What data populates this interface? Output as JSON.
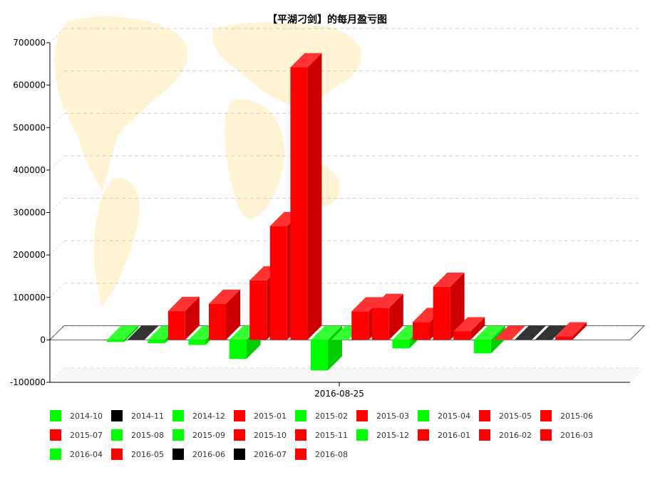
{
  "chart_data": {
    "type": "bar",
    "title": "【平湖刁剑】的每月盈亏图",
    "xlabel": "",
    "ylabel": "",
    "x_category_label": "2016-08-25",
    "ylim": [
      -100000,
      700000
    ],
    "yticks": [
      -100000,
      0,
      100000,
      200000,
      300000,
      400000,
      500000,
      600000,
      700000
    ],
    "grid": true,
    "legend_position": "bottom",
    "colors": {
      "gain": "#ff0000",
      "loss": "#00ff00",
      "zero": "#000000"
    },
    "series": [
      {
        "name": "2014-10",
        "value": -5000,
        "color": "#00ff00"
      },
      {
        "name": "2014-11",
        "value": 0,
        "color": "#000000"
      },
      {
        "name": "2014-12",
        "value": -8000,
        "color": "#00ff00"
      },
      {
        "name": "2015-01",
        "value": 68000,
        "color": "#ff0000"
      },
      {
        "name": "2015-02",
        "value": -12000,
        "color": "#00ff00"
      },
      {
        "name": "2015-03",
        "value": 85000,
        "color": "#ff0000"
      },
      {
        "name": "2015-04",
        "value": -45000,
        "color": "#00ff00"
      },
      {
        "name": "2015-05",
        "value": 140000,
        "color": "#ff0000"
      },
      {
        "name": "2015-06",
        "value": 268000,
        "color": "#ff0000"
      },
      {
        "name": "2015-07",
        "value": 642000,
        "color": "#ff0000"
      },
      {
        "name": "2015-08",
        "value": -72000,
        "color": "#00ff00"
      },
      {
        "name": "2015-09",
        "value": 0,
        "color": "#00ff00"
      },
      {
        "name": "2015-10",
        "value": 67000,
        "color": "#ff0000"
      },
      {
        "name": "2015-11",
        "value": 75000,
        "color": "#ff0000"
      },
      {
        "name": "2015-12",
        "value": -20000,
        "color": "#00ff00"
      },
      {
        "name": "2016-01",
        "value": 42000,
        "color": "#ff0000"
      },
      {
        "name": "2016-02",
        "value": 125000,
        "color": "#ff0000"
      },
      {
        "name": "2016-03",
        "value": 20000,
        "color": "#ff0000"
      },
      {
        "name": "2016-04",
        "value": -32000,
        "color": "#00ff00"
      },
      {
        "name": "2016-05",
        "value": 0,
        "color": "#ff0000"
      },
      {
        "name": "2016-06",
        "value": 0,
        "color": "#000000"
      },
      {
        "name": "2016-07",
        "value": 0,
        "color": "#000000"
      },
      {
        "name": "2016-08",
        "value": 8000,
        "color": "#ff0000"
      }
    ]
  }
}
